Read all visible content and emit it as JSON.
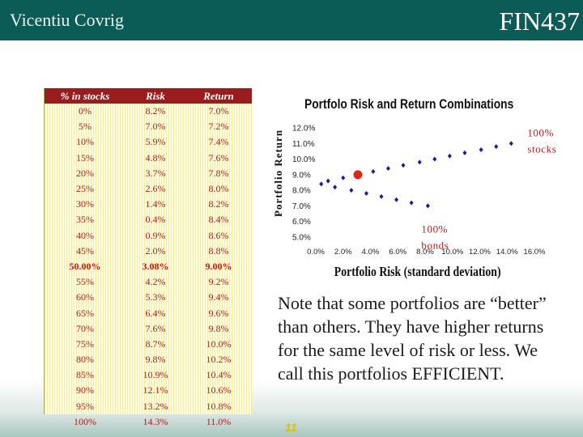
{
  "header": {
    "author": "Vicentiu Covrig",
    "course": "FIN437"
  },
  "table": {
    "headers": [
      "% in stocks",
      "Risk",
      "Return"
    ],
    "rows": [
      [
        "0%",
        "8.2%",
        "7.0%"
      ],
      [
        "5%",
        "7.0%",
        "7.2%"
      ],
      [
        "10%",
        "5.9%",
        "7.4%"
      ],
      [
        "15%",
        "4.8%",
        "7.6%"
      ],
      [
        "20%",
        "3.7%",
        "7.8%"
      ],
      [
        "25%",
        "2.6%",
        "8.0%"
      ],
      [
        "30%",
        "1.4%",
        "8.2%"
      ],
      [
        "35%",
        "0.4%",
        "8.4%"
      ],
      [
        "40%",
        "0.9%",
        "8.6%"
      ],
      [
        "45%",
        "2.0%",
        "8.8%"
      ],
      [
        "50.00%",
        "3.08%",
        "9.00%"
      ],
      [
        "55%",
        "4.2%",
        "9.2%"
      ],
      [
        "60%",
        "5.3%",
        "9.4%"
      ],
      [
        "65%",
        "6.4%",
        "9.6%"
      ],
      [
        "70%",
        "7.6%",
        "9.8%"
      ],
      [
        "75%",
        "8.7%",
        "10.0%"
      ],
      [
        "80%",
        "9.8%",
        "10.2%"
      ],
      [
        "85%",
        "10.9%",
        "10.4%"
      ],
      [
        "90%",
        "12.1%",
        "10.6%"
      ],
      [
        "95%",
        "13.2%",
        "10.8%"
      ],
      [
        "100%",
        "14.3%",
        "11.0%"
      ]
    ],
    "highlight_row": 10
  },
  "chart_data": {
    "type": "scatter",
    "title": "Portfolo Risk and Return Combinations",
    "xlabel": "Portfolio Risk (standard deviation)",
    "ylabel": "Portfolio Return",
    "xlim": [
      0,
      16
    ],
    "ylim": [
      5,
      12
    ],
    "x_ticks": [
      "0.0%",
      "2.0%",
      "4.0%",
      "6.0%",
      "8.0%",
      "10.0%",
      "12.0%",
      "14.0%",
      "16.0%"
    ],
    "y_ticks": [
      "12.0%",
      "11.0%",
      "10.0%",
      "9.0%",
      "8.0%",
      "7.0%",
      "6.0%",
      "5.0%"
    ],
    "points": [
      {
        "x": 8.2,
        "y": 7.0
      },
      {
        "x": 7.0,
        "y": 7.2
      },
      {
        "x": 5.9,
        "y": 7.4
      },
      {
        "x": 4.8,
        "y": 7.6
      },
      {
        "x": 3.7,
        "y": 7.8
      },
      {
        "x": 2.6,
        "y": 8.0
      },
      {
        "x": 1.4,
        "y": 8.2
      },
      {
        "x": 0.4,
        "y": 8.4
      },
      {
        "x": 0.9,
        "y": 8.6
      },
      {
        "x": 2.0,
        "y": 8.8
      },
      {
        "x": 3.08,
        "y": 9.0
      },
      {
        "x": 4.2,
        "y": 9.2
      },
      {
        "x": 5.3,
        "y": 9.4
      },
      {
        "x": 6.4,
        "y": 9.6
      },
      {
        "x": 7.6,
        "y": 9.8
      },
      {
        "x": 8.7,
        "y": 10.0
      },
      {
        "x": 9.8,
        "y": 10.2
      },
      {
        "x": 10.9,
        "y": 10.4
      },
      {
        "x": 12.1,
        "y": 10.6
      },
      {
        "x": 13.2,
        "y": 10.8
      },
      {
        "x": 14.3,
        "y": 11.0
      }
    ],
    "highlight_point": {
      "x": 3.08,
      "y": 9.0
    },
    "annotations": [
      {
        "text_lines": [
          "100%",
          "stocks"
        ],
        "x": 14.3,
        "y": 11.0
      },
      {
        "text_lines": [
          "100%",
          "bonds"
        ],
        "x": 8.2,
        "y": 7.0
      }
    ],
    "colors": {
      "marker": "#1a1aa0",
      "highlight": "#e0261b",
      "annotation": "#b31e1e"
    }
  },
  "note": "Note that some portfolios are “better” than others. They have higher returns for the same level of risk or less. We call this portfolios EFFICIENT.",
  "page_number": "11"
}
